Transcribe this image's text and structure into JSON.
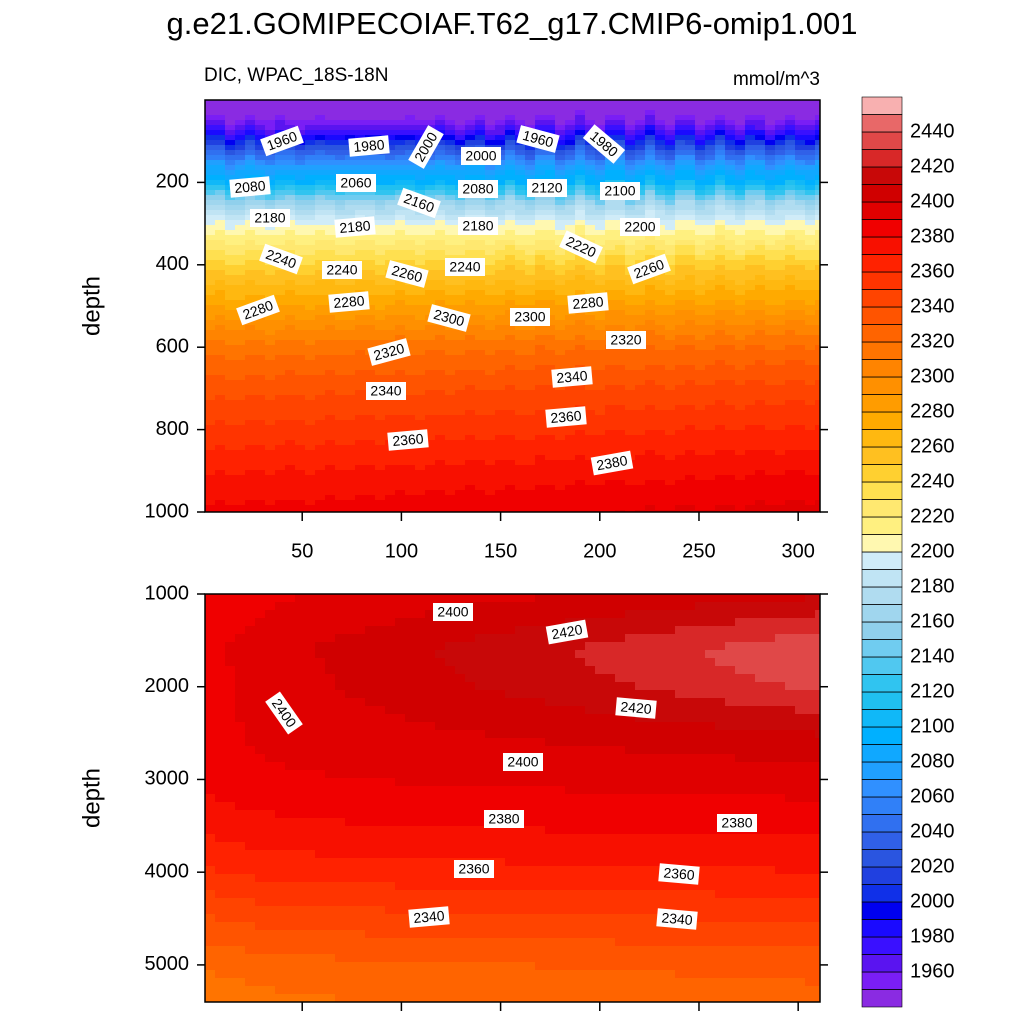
{
  "title": "g.e21.GOMIPECOIAF.T62_g17.CMIP6-omip1.001",
  "chart_data": [
    {
      "type": "contour",
      "subtitle_left": "DIC, WPAC_18S-18N",
      "subtitle_right": "mmol/m^3",
      "ylabel": "depth",
      "xlim": [
        1,
        311
      ],
      "xticks": [
        50,
        100,
        150,
        200,
        250,
        300
      ],
      "ylim": [
        0,
        1000
      ],
      "yticks": [
        200,
        400,
        600,
        800,
        1000
      ],
      "contour_labels": [
        1960,
        1980,
        2000,
        2000,
        1960,
        1980,
        2080,
        2060,
        2080,
        2120,
        2100,
        2160,
        2180,
        2180,
        2180,
        2200,
        2220,
        2240,
        2240,
        2260,
        2240,
        2260,
        2280,
        2280,
        2300,
        2300,
        2280,
        2320,
        2320,
        2340,
        2340,
        2360,
        2360,
        2380
      ]
    },
    {
      "type": "contour",
      "ylabel": "depth",
      "xlim": [
        1,
        311
      ],
      "xticks": [
        50,
        100,
        150,
        200,
        250,
        300
      ],
      "ylim": [
        1000,
        5400
      ],
      "yticks": [
        1000,
        2000,
        3000,
        4000,
        5000
      ],
      "contour_labels": [
        2400,
        2420,
        2400,
        2420,
        2400,
        2380,
        2380,
        2360,
        2360,
        2340,
        2340
      ]
    }
  ],
  "colorbar": {
    "levels": [
      1950,
      1960,
      1970,
      1980,
      1990,
      2000,
      2010,
      2020,
      2030,
      2040,
      2050,
      2060,
      2070,
      2080,
      2090,
      2100,
      2110,
      2120,
      2130,
      2140,
      2150,
      2160,
      2170,
      2180,
      2190,
      2200,
      2210,
      2220,
      2230,
      2240,
      2250,
      2260,
      2270,
      2280,
      2290,
      2300,
      2310,
      2320,
      2330,
      2340,
      2350,
      2360,
      2370,
      2380,
      2390,
      2400,
      2410,
      2420,
      2430,
      2440,
      2450
    ],
    "ticks": [
      1960,
      1980,
      2000,
      2020,
      2040,
      2060,
      2080,
      2100,
      2120,
      2140,
      2160,
      2180,
      2200,
      2220,
      2240,
      2260,
      2280,
      2300,
      2320,
      2340,
      2360,
      2380,
      2400,
      2420,
      2440
    ],
    "colors": [
      "#8a2be2",
      "#7a1ef5",
      "#5a14f0",
      "#3a10ff",
      "#1a0aff",
      "#0000f0",
      "#1030e8",
      "#2040e0",
      "#2a55e0",
      "#3060e8",
      "#3070f0",
      "#3080f8",
      "#3090ff",
      "#20a0ff",
      "#10a8ff",
      "#00b0ff",
      "#10b8f8",
      "#20c0f0",
      "#30c4f0",
      "#50c8f0",
      "#70ccf0",
      "#90d0ec",
      "#a0d6ee",
      "#b0dcf0",
      "#c0e4f4",
      "#d0ecf8",
      "#fff8b0",
      "#fff080",
      "#ffe870",
      "#ffe050",
      "#ffd030",
      "#ffc020",
      "#ffb810",
      "#ffaa00",
      "#ff9c00",
      "#ff9000",
      "#ff8400",
      "#ff7400",
      "#ff6400",
      "#ff5400",
      "#ff4400",
      "#ff3400",
      "#ff2200",
      "#f81000",
      "#f00000",
      "#e00000",
      "#d00000",
      "#c80808",
      "#d82828",
      "#e04848",
      "#e86868",
      "#f8b0b0"
    ]
  }
}
